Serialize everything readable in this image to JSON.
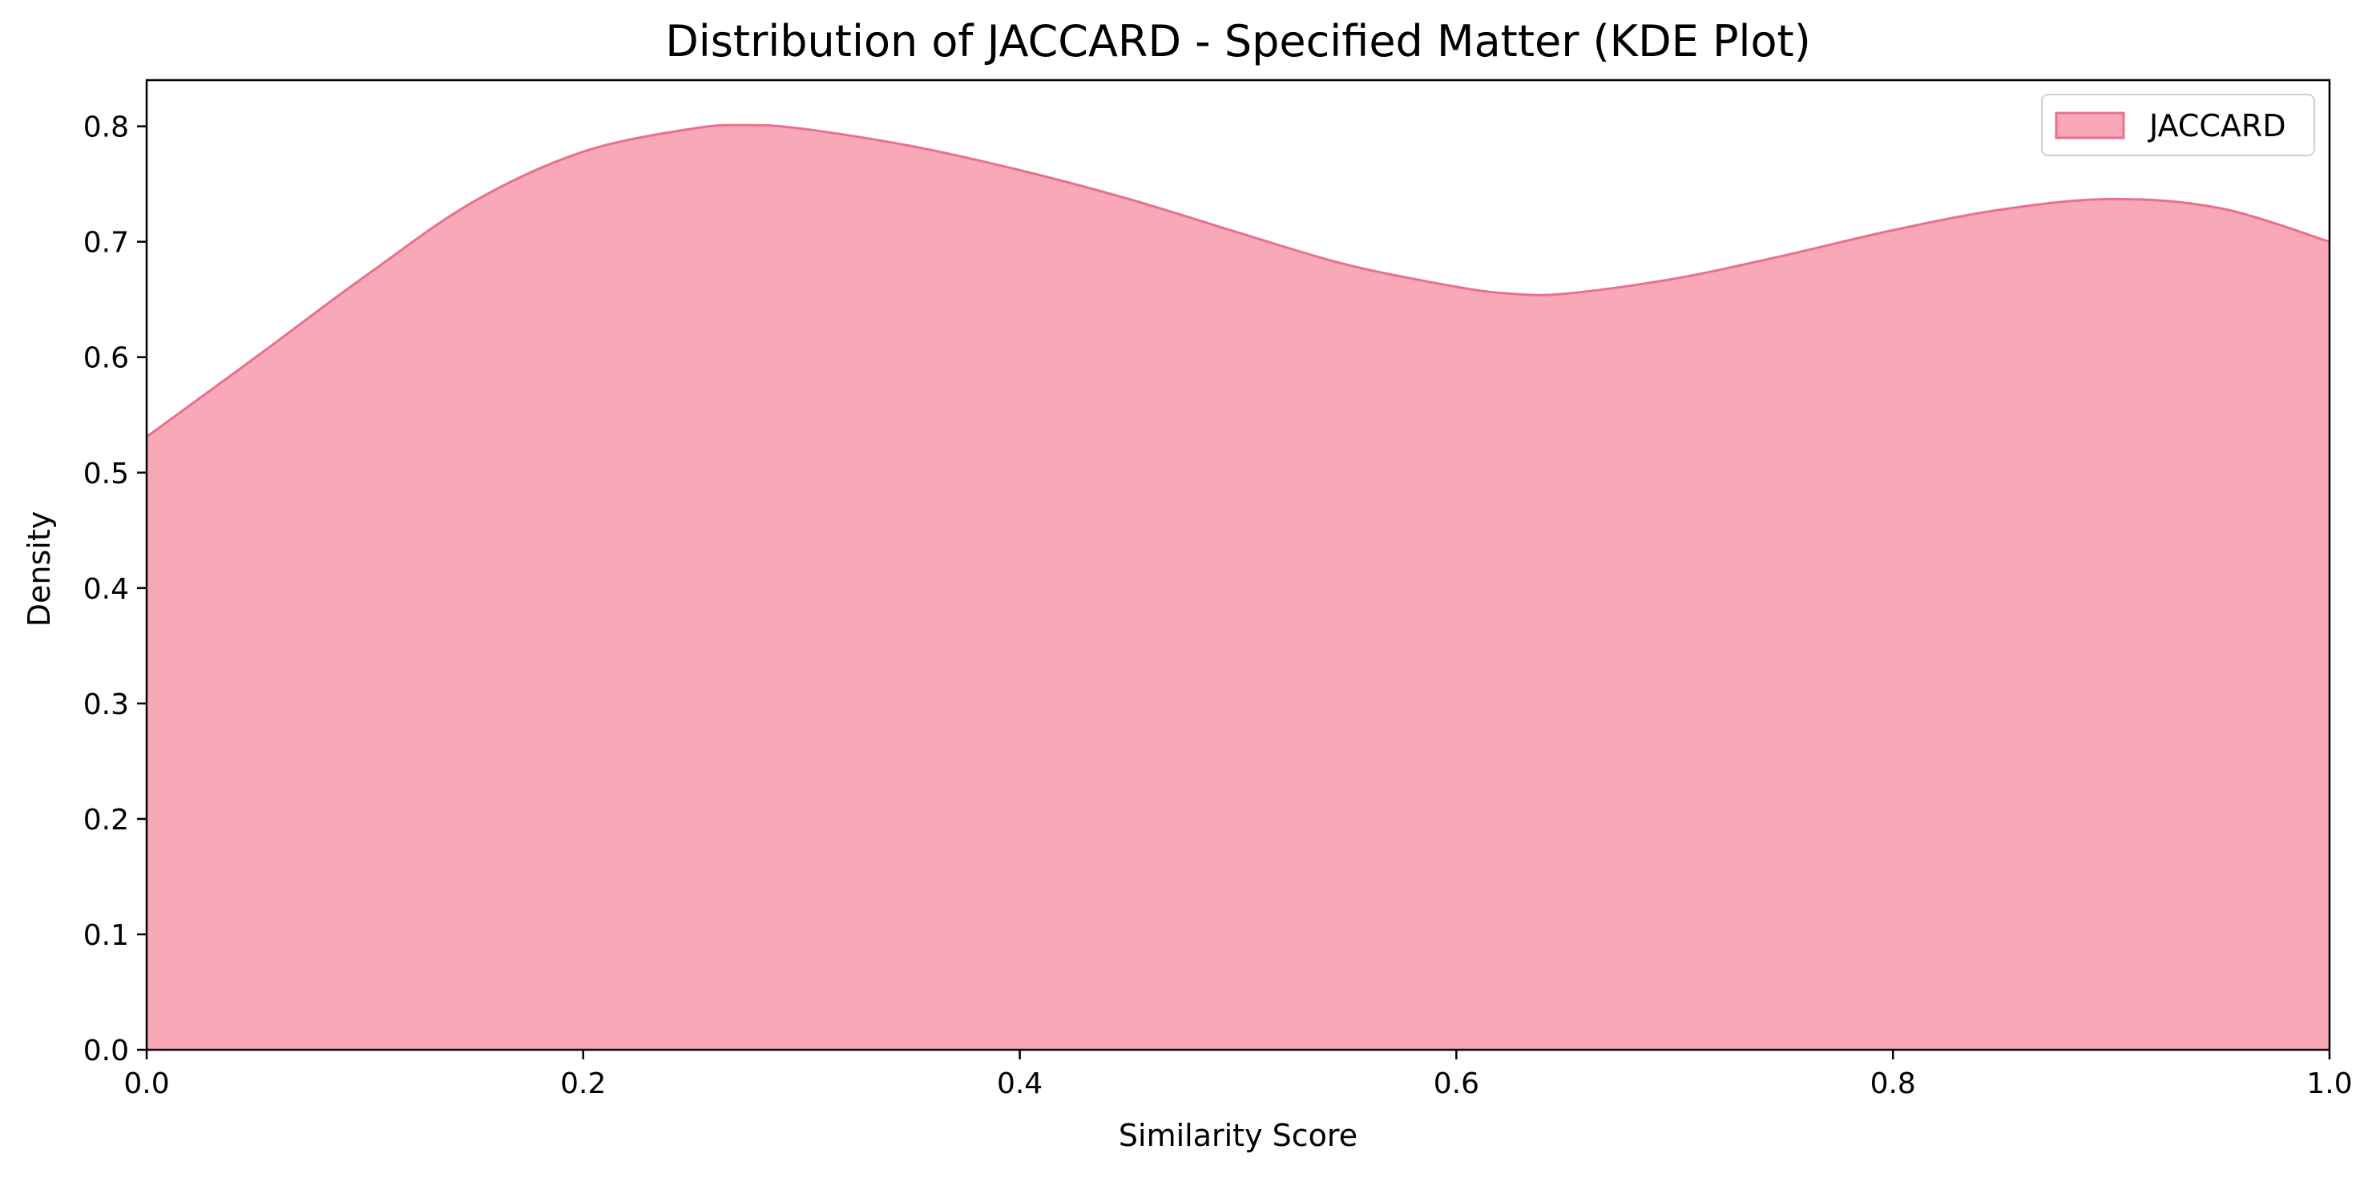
{
  "chart_data": {
    "type": "area",
    "title": "Distribution of JACCARD - Specified Matter (KDE Plot)",
    "xlabel": "Similarity Score",
    "ylabel": "Density",
    "xlim": [
      0.0,
      1.0
    ],
    "ylim": [
      0.0,
      0.84
    ],
    "xticks": [
      "0.0",
      "0.2",
      "0.4",
      "0.6",
      "0.8",
      "1.0"
    ],
    "yticks": [
      "0.0",
      "0.1",
      "0.2",
      "0.3",
      "0.4",
      "0.5",
      "0.6",
      "0.7",
      "0.8"
    ],
    "grid": false,
    "legend_position": "top-right",
    "series": [
      {
        "name": "JACCARD",
        "fill_color": "#f9a8b7",
        "line_color": "#e8718d",
        "x": [
          0.0,
          0.05,
          0.1,
          0.15,
          0.2,
          0.25,
          0.275,
          0.3,
          0.35,
          0.4,
          0.45,
          0.5,
          0.55,
          0.6,
          0.625,
          0.65,
          0.7,
          0.75,
          0.8,
          0.85,
          0.9,
          0.95,
          1.0
        ],
        "y": [
          0.531,
          0.6,
          0.67,
          0.735,
          0.778,
          0.798,
          0.801,
          0.798,
          0.783,
          0.762,
          0.737,
          0.708,
          0.68,
          0.661,
          0.655,
          0.655,
          0.668,
          0.688,
          0.71,
          0.728,
          0.737,
          0.729,
          0.7
        ]
      }
    ]
  }
}
